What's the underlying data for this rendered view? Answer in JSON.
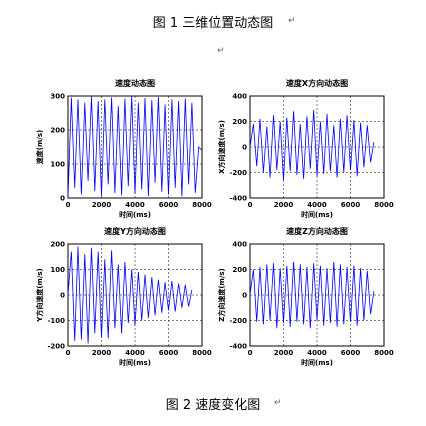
{
  "document": {
    "figure1_caption": "图 1  三维位置动态图",
    "figure2_caption": "图 2  速度变化图",
    "paragraph_mark": "↵"
  },
  "chart_data": [
    {
      "type": "line",
      "title": "速度动态图",
      "xlabel": "时间(ms)",
      "ylabel": "速度(m/s)",
      "xlim": [
        0,
        8000
      ],
      "ylim": [
        0,
        300
      ],
      "xticks": [
        0,
        2000,
        4000,
        6000,
        8000
      ],
      "yticks": [
        0,
        100,
        200,
        300
      ],
      "grid": true,
      "color": "#0000ff",
      "series": [
        {
          "x": [
            0,
            200,
            400,
            600,
            800,
            1000,
            1200,
            1400,
            1600,
            1800,
            2000,
            2200,
            2400,
            2600,
            2800,
            3000,
            3200,
            3400,
            3600,
            3800,
            4000,
            4200,
            4400,
            4600,
            4800,
            5000,
            5200,
            5400,
            5600,
            5800,
            6000,
            6200,
            6400,
            6600,
            6800,
            7000,
            7200,
            7400,
            7600,
            7800,
            8000
          ],
          "values": [
            0,
            295,
            30,
            290,
            10,
            280,
            50,
            298,
            20,
            285,
            5,
            290,
            40,
            296,
            15,
            270,
            8,
            292,
            35,
            299,
            12,
            280,
            25,
            294,
            6,
            288,
            45,
            297,
            18,
            275,
            10,
            290,
            30,
            285,
            5,
            293,
            40,
            280,
            15,
            150,
            140
          ]
        }
      ]
    },
    {
      "type": "line",
      "title": "速度X方向动态图",
      "xlabel": "时间(ms)",
      "ylabel": "X方向速度(m/s)",
      "xlim": [
        0,
        8000
      ],
      "ylim": [
        -400,
        400
      ],
      "xticks": [
        0,
        2000,
        4000,
        6000,
        8000
      ],
      "yticks": [
        -400,
        -200,
        0,
        200,
        400
      ],
      "grid": true,
      "color": "#0000ff",
      "series": [
        {
          "x": [
            0,
            200,
            400,
            600,
            800,
            1000,
            1200,
            1400,
            1600,
            1800,
            2000,
            2200,
            2400,
            2600,
            2800,
            3000,
            3200,
            3400,
            3600,
            3800,
            4000,
            4200,
            4400,
            4600,
            4800,
            5000,
            5200,
            5400,
            5600,
            5800,
            6000,
            6200,
            6400,
            6600,
            6800,
            7000,
            7200,
            7400
          ],
          "values": [
            0,
            180,
            -150,
            220,
            -200,
            160,
            -240,
            250,
            -180,
            200,
            -260,
            230,
            -190,
            280,
            -220,
            180,
            -250,
            240,
            -170,
            290,
            -230,
            200,
            -210,
            260,
            -190,
            170,
            -240,
            220,
            -200,
            250,
            -180,
            210,
            -230,
            190,
            -160,
            170,
            -120,
            40
          ]
        }
      ]
    },
    {
      "type": "line",
      "title": "速度Y方向动态图",
      "xlabel": "时间(ms)",
      "ylabel": "Y方向速度(m/s)",
      "xlim": [
        0,
        8000
      ],
      "ylim": [
        -200,
        200
      ],
      "xticks": [
        0,
        2000,
        4000,
        6000,
        8000
      ],
      "yticks": [
        -200,
        -100,
        0,
        100,
        200
      ],
      "grid": true,
      "color": "#0000ff",
      "series": [
        {
          "x": [
            0,
            200,
            400,
            600,
            800,
            1000,
            1200,
            1400,
            1600,
            1800,
            2000,
            2200,
            2400,
            2600,
            2800,
            3000,
            3200,
            3400,
            3600,
            3800,
            4000,
            4200,
            4400,
            4600,
            4800,
            5000,
            5200,
            5400,
            5600,
            5800,
            6000,
            6200,
            6400,
            6600,
            6800,
            7000,
            7200,
            7400
          ],
          "values": [
            0,
            170,
            -180,
            190,
            -175,
            160,
            -190,
            185,
            -150,
            170,
            -165,
            140,
            -170,
            175,
            -130,
            120,
            -150,
            130,
            -110,
            100,
            -120,
            90,
            -100,
            80,
            -90,
            70,
            -80,
            60,
            -70,
            50,
            -60,
            55,
            -65,
            45,
            -50,
            40,
            -45,
            20
          ]
        }
      ]
    },
    {
      "type": "line",
      "title": "速度Z方向动态图",
      "xlabel": "时间(ms)",
      "ylabel": "Z方向速度(m/s)",
      "xlim": [
        0,
        8000
      ],
      "ylim": [
        -400,
        400
      ],
      "xticks": [
        0,
        2000,
        4000,
        6000,
        8000
      ],
      "yticks": [
        -400,
        -200,
        0,
        200,
        400
      ],
      "grid": true,
      "color": "#0000ff",
      "series": [
        {
          "x": [
            0,
            200,
            400,
            600,
            800,
            1000,
            1200,
            1400,
            1600,
            1800,
            2000,
            2200,
            2400,
            2600,
            2800,
            3000,
            3200,
            3400,
            3600,
            3800,
            4000,
            4200,
            4400,
            4600,
            4800,
            5000,
            5200,
            5400,
            5600,
            5800,
            6000,
            6200,
            6400,
            6600,
            6800,
            7000,
            7200,
            7400
          ],
          "values": [
            0,
            200,
            -210,
            220,
            -230,
            240,
            -200,
            250,
            -260,
            210,
            -220,
            230,
            -250,
            260,
            -210,
            240,
            -230,
            220,
            -260,
            250,
            -200,
            230,
            -240,
            210,
            -220,
            260,
            -250,
            240,
            -230,
            220,
            -210,
            230,
            -240,
            210,
            -200,
            190,
            -150,
            30
          ]
        }
      ]
    }
  ]
}
